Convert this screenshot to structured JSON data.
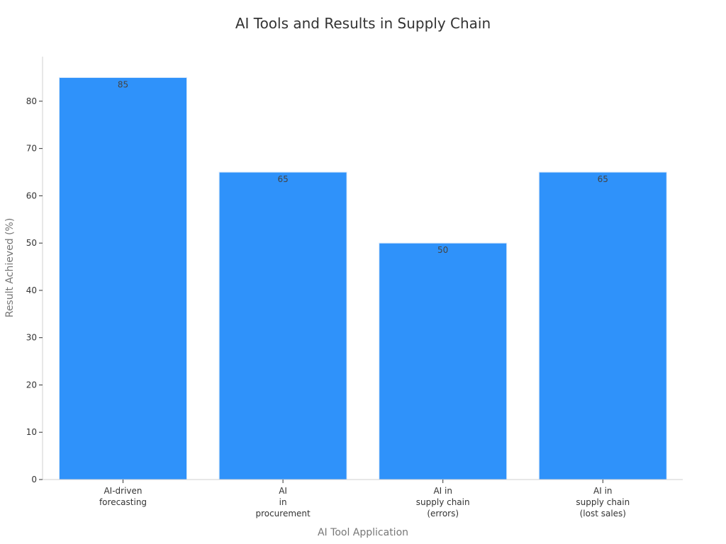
{
  "chart_data": {
    "type": "bar",
    "title": "AI Tools and Results in Supply Chain",
    "xlabel": "AI Tool Application",
    "ylabel": "Result Achieved (%)",
    "categories": [
      [
        "AI-driven",
        "forecasting"
      ],
      [
        "AI",
        "in",
        "procurement"
      ],
      [
        "AI in",
        "supply chain",
        "(errors)"
      ],
      [
        "AI in",
        "supply chain",
        "(lost sales)"
      ]
    ],
    "values": [
      85,
      65,
      50,
      65
    ],
    "data_labels": [
      "85",
      "65",
      "50",
      "65"
    ],
    "yticks": [
      0,
      10,
      20,
      30,
      40,
      50,
      60,
      70,
      80
    ],
    "ylim": [
      0,
      89
    ],
    "grid": false,
    "legend": "none",
    "bar_color": "#2f92fa",
    "bar_edge_color": "#d6e8fb"
  }
}
